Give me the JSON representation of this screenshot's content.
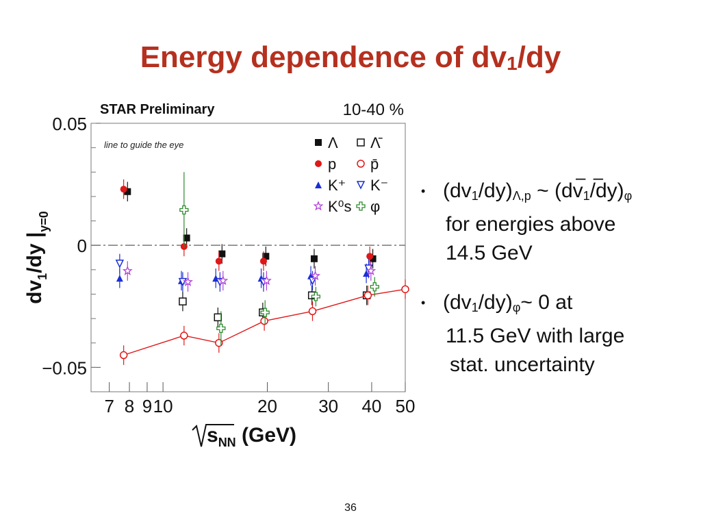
{
  "slide": {
    "title_main": "Energy dependence of dv",
    "title_sub": "1",
    "title_end": "/dy",
    "page_number": "36"
  },
  "bullets": [
    {
      "a": "(dv",
      "a_sub": "1",
      "b": "/dy)",
      "b_sub": "Λ,p",
      "c": " ~ (dv",
      "c_sub": "1",
      "d": "/dy)",
      "d_sub": "φ",
      "line2": "for energies above",
      "line3": "14.5 GeV",
      "overbar": "– –"
    },
    {
      "a": "(dv",
      "a_sub": "1",
      "b": "/dy)",
      "b_sub": "φ",
      "c": "~ 0 at",
      "line2": "11.5 GeV with large",
      "line3": "stat. uncertainty"
    }
  ],
  "chart_data": {
    "type": "scatter",
    "title": "STAR Preliminary",
    "centrality": "10-40 %",
    "annotation": "line to guide the eye",
    "ylabel_main": "dv",
    "ylabel_sub1": "1",
    "ylabel_mid": "/dy |",
    "ylabel_sub2": "y=0",
    "xlabel_main": "s",
    "xlabel_sub": "NN",
    "xlabel_unit": " (GeV)",
    "xscale": "log",
    "xlim": [
      6.2,
      50
    ],
    "ylim": [
      -0.06,
      0.05
    ],
    "x_ticks": [
      {
        "v": 7,
        "label": "7"
      },
      {
        "v": 8,
        "label": "8"
      },
      {
        "v": 9,
        "label": "9"
      },
      {
        "v": 10,
        "label": "10"
      },
      {
        "v": 20,
        "label": "20"
      },
      {
        "v": 30,
        "label": "30"
      },
      {
        "v": 40,
        "label": "40"
      },
      {
        "v": 50,
        "label": "50"
      }
    ],
    "y_ticks": [
      {
        "v": 0.05,
        "label": "0.05"
      },
      {
        "v": 0,
        "label": "0"
      },
      {
        "v": -0.05,
        "label": "−0.05"
      }
    ],
    "legend": [
      {
        "name": "Λ",
        "marker": "square-filled",
        "color": "#111111"
      },
      {
        "name": "Λ̄",
        "marker": "square-open",
        "color": "#111111"
      },
      {
        "name": "p",
        "marker": "circle-filled",
        "color": "#e01818"
      },
      {
        "name": "p̄",
        "marker": "circle-open",
        "color": "#e01818"
      },
      {
        "name": "K⁺",
        "marker": "triangle-filled",
        "color": "#1a2fd6"
      },
      {
        "name": "K⁻",
        "marker": "triangle-down-open",
        "color": "#1a2fd6"
      },
      {
        "name": "K⁰s",
        "marker": "star-open",
        "color": "#b040d8"
      },
      {
        "name": "φ",
        "marker": "cross-open",
        "color": "#2a8a2a"
      }
    ],
    "series": [
      {
        "name": "Λ",
        "marker": "square-filled",
        "color": "#111111",
        "points": [
          [
            7.9,
            0.022
          ],
          [
            11.7,
            0.003
          ],
          [
            14.8,
            -0.0035
          ],
          [
            19.8,
            -0.0045
          ],
          [
            27.3,
            -0.0055
          ],
          [
            40.3,
            -0.0055
          ]
        ]
      },
      {
        "name": "Λ̄",
        "marker": "square-open",
        "color": "#111111",
        "points": [
          [
            11.4,
            -0.023
          ],
          [
            14.4,
            -0.0295
          ],
          [
            19.4,
            -0.0275
          ],
          [
            26.9,
            -0.0205
          ],
          [
            38.7,
            -0.0205
          ]
        ]
      },
      {
        "name": "p",
        "marker": "circle-filled",
        "color": "#e01818",
        "points": [
          [
            7.7,
            0.023
          ],
          [
            11.5,
            -0.0005
          ],
          [
            14.5,
            -0.0065
          ],
          [
            19.5,
            -0.0065
          ],
          [
            39.5,
            -0.0045
          ]
        ]
      },
      {
        "name": "p̄",
        "marker": "circle-open",
        "color": "#e01818",
        "line": true,
        "points": [
          [
            7.7,
            -0.045
          ],
          [
            11.5,
            -0.037
          ],
          [
            14.5,
            -0.04
          ],
          [
            19.6,
            -0.031
          ],
          [
            27.0,
            -0.027
          ],
          [
            39.0,
            -0.0205
          ],
          [
            50,
            -0.018
          ]
        ]
      },
      {
        "name": "K⁺",
        "marker": "triangle-filled",
        "color": "#1a2fd6",
        "points": [
          [
            7.5,
            -0.0135
          ],
          [
            11.3,
            -0.0145
          ],
          [
            14.2,
            -0.0135
          ],
          [
            19.2,
            -0.0135
          ],
          [
            26.7,
            -0.0125
          ],
          [
            38.6,
            -0.0115
          ]
        ]
      },
      {
        "name": "K⁻",
        "marker": "triangle-down-open",
        "color": "#1a2fd6",
        "points": [
          [
            7.5,
            -0.0075
          ],
          [
            11.4,
            -0.015
          ],
          [
            14.6,
            -0.015
          ],
          [
            19.5,
            -0.015
          ],
          [
            27.0,
            -0.0145
          ],
          [
            39.2,
            -0.0095
          ]
        ]
      },
      {
        "name": "K⁰s",
        "marker": "star-open",
        "color": "#b040d8",
        "points": [
          [
            7.9,
            -0.0105
          ],
          [
            11.8,
            -0.015
          ],
          [
            14.9,
            -0.0145
          ],
          [
            19.9,
            -0.0145
          ],
          [
            27.5,
            -0.0125
          ],
          [
            39.8,
            -0.0105
          ]
        ]
      },
      {
        "name": "φ",
        "marker": "cross-open",
        "color": "#2a8a2a",
        "points": [
          [
            11.5,
            0.0145,
            0.0155
          ],
          [
            14.7,
            -0.034,
            0.007
          ],
          [
            19.7,
            -0.0275,
            0.005
          ],
          [
            27.6,
            -0.021,
            0.004
          ],
          [
            40.8,
            -0.017,
            0.004
          ]
        ]
      }
    ]
  }
}
